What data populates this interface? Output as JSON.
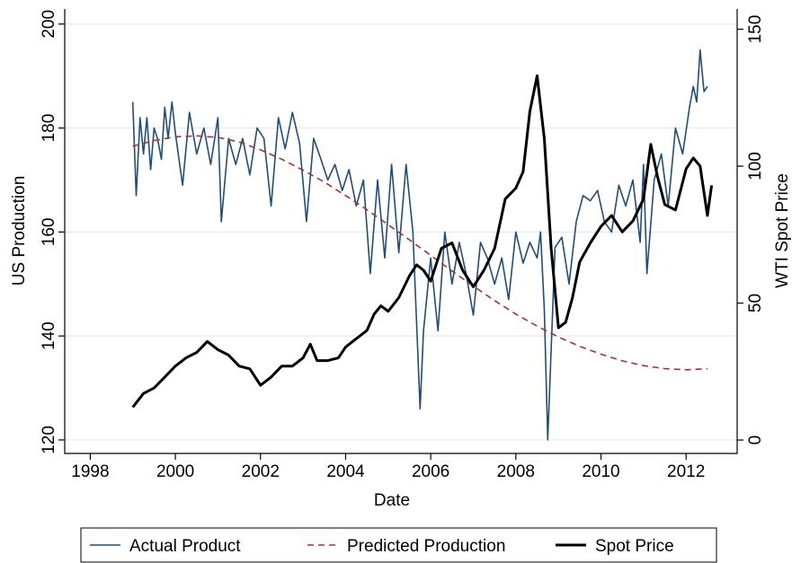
{
  "chart_data": {
    "type": "line",
    "xlabel": "Date",
    "ylabel": "US Production",
    "y2label": "WTI Spot Price",
    "xlim": [
      1997.4,
      2013.2
    ],
    "xticks": [
      1998,
      2000,
      2002,
      2004,
      2006,
      2008,
      2010,
      2012
    ],
    "ylim": [
      117.4,
      202.9
    ],
    "yticks": [
      120,
      140,
      160,
      180,
      200
    ],
    "y2lim": [
      -4.9,
      157.4
    ],
    "y2ticks": [
      0,
      50,
      100,
      150
    ],
    "grid": true,
    "legend": "bottom",
    "series": [
      {
        "name": "Actual Product",
        "color": "#1f4e79",
        "style": "solid",
        "width": 1.6,
        "x": [
          1999.0,
          1999.08,
          1999.17,
          1999.25,
          1999.33,
          1999.42,
          1999.5,
          1999.58,
          1999.67,
          1999.75,
          1999.83,
          1999.92,
          2000.0,
          2000.17,
          2000.33,
          2000.5,
          2000.67,
          2000.83,
          2001.0,
          2001.08,
          2001.25,
          2001.42,
          2001.58,
          2001.75,
          2001.92,
          2002.08,
          2002.25,
          2002.42,
          2002.58,
          2002.75,
          2002.92,
          2003.08,
          2003.25,
          2003.42,
          2003.58,
          2003.75,
          2003.92,
          2004.08,
          2004.25,
          2004.42,
          2004.58,
          2004.75,
          2004.92,
          2005.08,
          2005.25,
          2005.42,
          2005.58,
          2005.75,
          2005.83,
          2006.0,
          2006.17,
          2006.33,
          2006.5,
          2006.67,
          2006.83,
          2007.0,
          2007.17,
          2007.33,
          2007.5,
          2007.67,
          2007.83,
          2008.0,
          2008.17,
          2008.33,
          2008.5,
          2008.58,
          2008.67,
          2008.75,
          2008.92,
          2009.08,
          2009.25,
          2009.42,
          2009.58,
          2009.75,
          2009.92,
          2010.08,
          2010.25,
          2010.42,
          2010.58,
          2010.75,
          2010.92,
          2011.0,
          2011.08,
          2011.25,
          2011.42,
          2011.58,
          2011.75,
          2011.92,
          2012.08,
          2012.17,
          2012.25,
          2012.33,
          2012.42,
          2012.5
        ],
        "values": [
          185,
          167,
          182,
          175,
          182,
          172,
          180,
          178,
          174,
          184,
          178,
          185,
          179,
          169,
          183,
          175,
          180,
          173,
          182,
          162,
          178,
          173,
          178,
          171,
          180,
          178,
          165,
          182,
          176,
          183,
          177,
          162,
          178,
          174,
          170,
          173,
          168,
          172,
          165,
          170,
          152,
          170,
          155,
          173,
          156,
          173,
          160,
          126,
          141,
          155,
          141,
          160,
          150,
          158,
          152,
          144,
          158,
          155,
          150,
          155,
          147,
          160,
          154,
          158,
          155,
          160,
          145,
          120,
          157,
          159,
          150,
          162,
          167,
          166,
          168,
          162,
          160,
          169,
          165,
          170,
          158,
          173,
          152,
          170,
          175,
          165,
          180,
          175,
          184,
          188,
          185,
          195,
          187,
          188
        ]
      },
      {
        "name": "Predicted Production",
        "color": "#a83232",
        "style": "dashed",
        "width": 1.6,
        "x": [
          1999.0,
          1999.5,
          2000.0,
          2000.5,
          2001.0,
          2001.5,
          2002.0,
          2002.5,
          2003.0,
          2003.5,
          2004.0,
          2004.5,
          2005.0,
          2005.5,
          2006.0,
          2006.5,
          2007.0,
          2007.5,
          2008.0,
          2008.5,
          2009.0,
          2009.5,
          2010.0,
          2010.5,
          2011.0,
          2011.5,
          2012.0,
          2012.5
        ],
        "values": [
          176.5,
          177.6,
          178.3,
          178.5,
          178.2,
          177.3,
          175.8,
          174.0,
          171.9,
          169.6,
          167.0,
          164.3,
          161.4,
          158.5,
          155.5,
          152.5,
          149.6,
          146.8,
          144.2,
          141.9,
          139.8,
          138.0,
          136.5,
          135.2,
          134.3,
          133.7,
          133.5,
          133.7
        ]
      },
      {
        "name": "Spot Price",
        "color": "#000000",
        "style": "solid",
        "width": 3,
        "axis": "y2",
        "x": [
          1999.0,
          1999.25,
          1999.5,
          1999.75,
          2000.0,
          2000.25,
          2000.5,
          2000.75,
          2001.0,
          2001.25,
          2001.5,
          2001.75,
          2002.0,
          2002.25,
          2002.5,
          2002.75,
          2003.0,
          2003.17,
          2003.33,
          2003.58,
          2003.83,
          2004.0,
          2004.25,
          2004.5,
          2004.67,
          2004.83,
          2005.0,
          2005.25,
          2005.5,
          2005.67,
          2005.83,
          2006.0,
          2006.25,
          2006.5,
          2006.75,
          2007.0,
          2007.25,
          2007.5,
          2007.75,
          2008.0,
          2008.17,
          2008.33,
          2008.5,
          2008.67,
          2008.83,
          2009.0,
          2009.17,
          2009.33,
          2009.5,
          2009.75,
          2010.0,
          2010.25,
          2010.5,
          2010.75,
          2011.0,
          2011.17,
          2011.33,
          2011.5,
          2011.75,
          2012.0,
          2012.17,
          2012.33,
          2012.5,
          2012.6
        ],
        "values": [
          12,
          17,
          19,
          23,
          27,
          30,
          32,
          36,
          33,
          31,
          27,
          26,
          20,
          23,
          27,
          27,
          30,
          35,
          29,
          29,
          30,
          34,
          37,
          40,
          46,
          49,
          47,
          52,
          60,
          64,
          62,
          58,
          70,
          72,
          62,
          56,
          62,
          70,
          88,
          92,
          98,
          120,
          133,
          110,
          70,
          41,
          43,
          52,
          65,
          72,
          78,
          82,
          76,
          80,
          88,
          108,
          96,
          86,
          84,
          99,
          103,
          100,
          82,
          93
        ]
      }
    ]
  }
}
